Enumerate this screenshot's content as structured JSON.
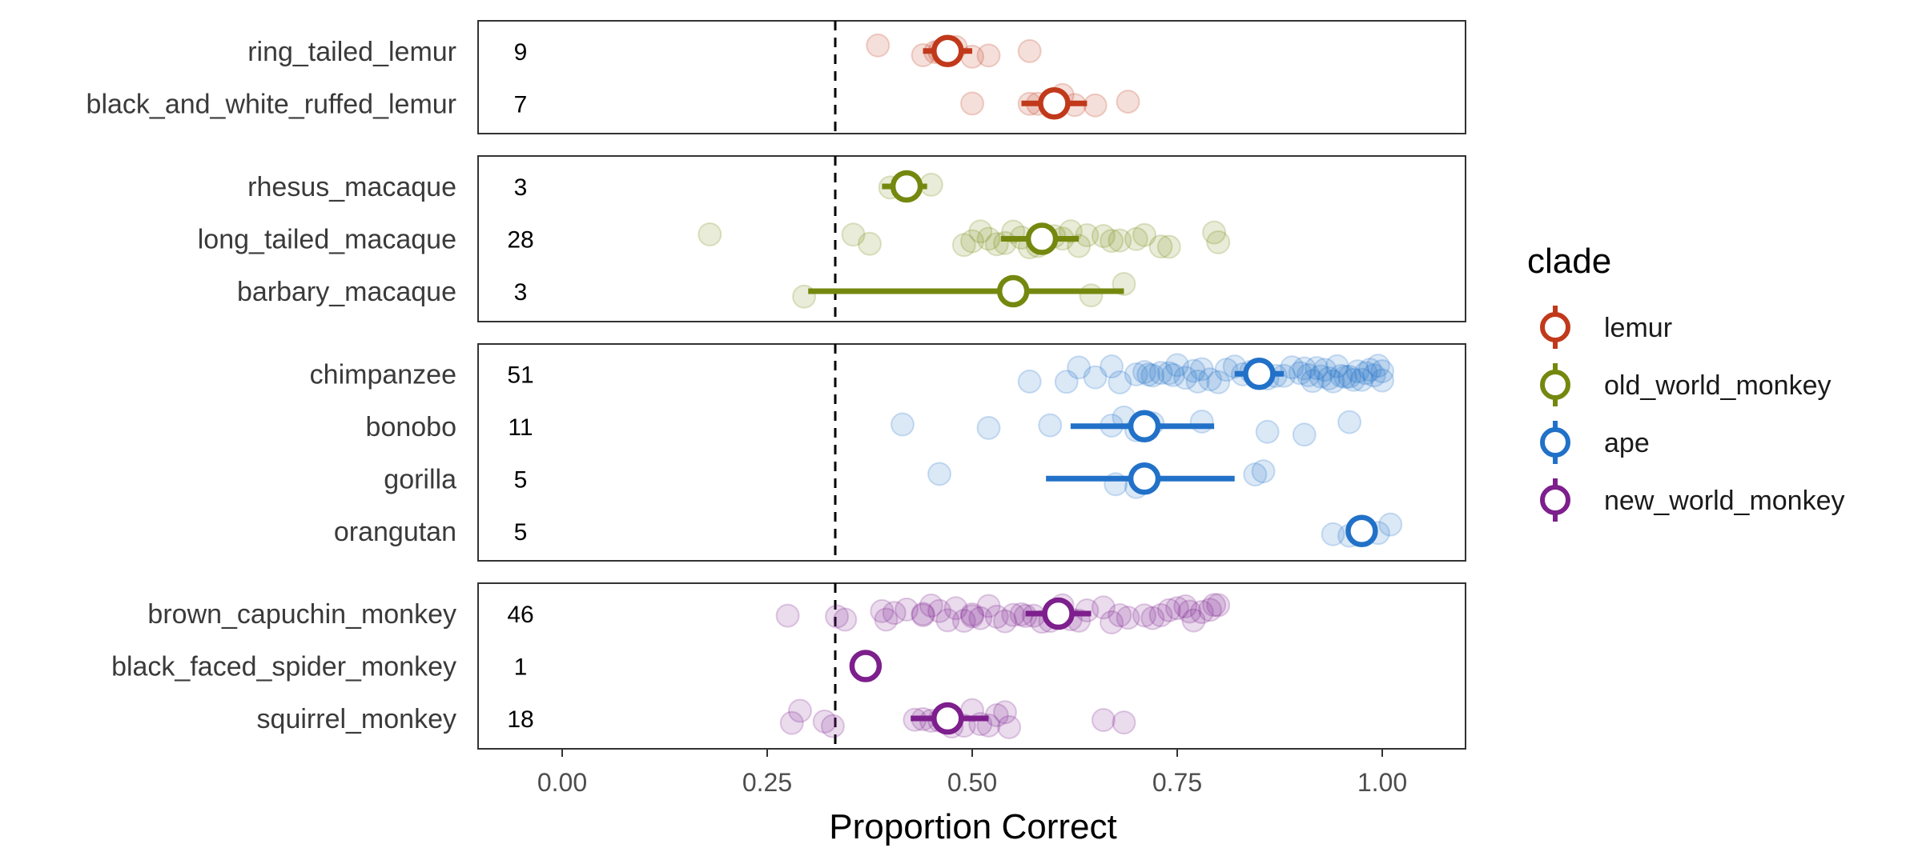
{
  "chart_data": {
    "type": "scatter",
    "title": "",
    "xlabel": "Proportion Correct",
    "ylabel": "",
    "xlim": [
      -0.1,
      1.1
    ],
    "x_ticks": [
      0,
      0.25,
      0.5,
      0.75,
      1
    ],
    "x_tick_labels": [
      "0.00",
      "0.25",
      "0.50",
      "0.75",
      "1.00"
    ],
    "chance_line": 0.333,
    "grid": false,
    "legend": {
      "title": "clade",
      "position": "right",
      "entries": [
        {
          "key": "lemur",
          "label": "lemur",
          "color": "#C1391B"
        },
        {
          "key": "old_world_monkey",
          "label": "old_world_monkey",
          "color": "#74880F"
        },
        {
          "key": "ape",
          "label": "ape",
          "color": "#2271C8"
        },
        {
          "key": "new_world_monkey",
          "label": "new_world_monkey",
          "color": "#7D1F8C"
        }
      ]
    },
    "panels": [
      {
        "clade": "lemur",
        "species": [
          {
            "name": "ring_tailed_lemur",
            "n": "9",
            "mean": 0.47,
            "ci": [
              0.44,
              0.5
            ],
            "points": [
              0.385,
              0.44,
              0.455,
              0.47,
              0.48,
              0.5,
              0.52,
              0.57,
              0.46
            ]
          },
          {
            "name": "black_and_white_ruffed_lemur",
            "n": "7",
            "mean": 0.6,
            "ci": [
              0.56,
              0.64
            ],
            "points": [
              0.5,
              0.57,
              0.58,
              0.61,
              0.625,
              0.65,
              0.69
            ]
          }
        ]
      },
      {
        "clade": "old_world_monkey",
        "species": [
          {
            "name": "rhesus_macaque",
            "n": "3",
            "mean": 0.42,
            "ci": [
              0.39,
              0.445
            ],
            "points": [
              0.4,
              0.42,
              0.45
            ]
          },
          {
            "name": "long_tailed_macaque",
            "n": "28",
            "mean": 0.585,
            "ci": [
              0.535,
              0.63
            ],
            "points": [
              0.18,
              0.355,
              0.375,
              0.49,
              0.5,
              0.51,
              0.52,
              0.53,
              0.54,
              0.55,
              0.56,
              0.57,
              0.58,
              0.59,
              0.6,
              0.61,
              0.62,
              0.63,
              0.64,
              0.66,
              0.67,
              0.68,
              0.7,
              0.71,
              0.73,
              0.74,
              0.795,
              0.8
            ]
          },
          {
            "name": "barbary_macaque",
            "n": "3",
            "mean": 0.55,
            "ci": [
              0.3,
              0.685
            ],
            "points": [
              0.295,
              0.645,
              0.685
            ]
          }
        ]
      },
      {
        "clade": "ape",
        "species": [
          {
            "name": "chimpanzee",
            "n": "51",
            "mean": 0.85,
            "ci": [
              0.82,
              0.88
            ],
            "points": [
              0.57,
              0.615,
              0.63,
              0.65,
              0.67,
              0.68,
              0.7,
              0.71,
              0.72,
              0.73,
              0.74,
              0.75,
              0.76,
              0.77,
              0.78,
              0.79,
              0.8,
              0.81,
              0.82,
              0.83,
              0.84,
              0.85,
              0.86,
              0.87,
              0.88,
              0.89,
              0.9,
              0.91,
              0.92,
              0.93,
              0.94,
              0.95,
              0.96,
              0.965,
              0.97,
              0.975,
              0.98,
              0.985,
              0.99,
              0.995,
              1.0,
              1.0,
              0.905,
              0.915,
              0.925,
              0.935,
              0.945,
              0.955,
              0.775,
              0.745,
              0.715
            ]
          },
          {
            "name": "bonobo",
            "n": "11",
            "mean": 0.71,
            "ci": [
              0.62,
              0.795
            ],
            "points": [
              0.415,
              0.52,
              0.595,
              0.67,
              0.685,
              0.7,
              0.72,
              0.78,
              0.86,
              0.905,
              0.96
            ]
          },
          {
            "name": "gorilla",
            "n": "5",
            "mean": 0.71,
            "ci": [
              0.59,
              0.82
            ],
            "points": [
              0.46,
              0.675,
              0.7,
              0.845,
              0.855
            ]
          },
          {
            "name": "orangutan",
            "n": "5",
            "mean": 0.975,
            "ci": [
              0.965,
              0.985
            ],
            "points": [
              0.94,
              0.96,
              0.975,
              0.995,
              1.01
            ]
          }
        ]
      },
      {
        "clade": "new_world_monkey",
        "species": [
          {
            "name": "brown_capuchin_monkey",
            "n": "46",
            "mean": 0.605,
            "ci": [
              0.565,
              0.645
            ],
            "points": [
              0.275,
              0.335,
              0.345,
              0.39,
              0.395,
              0.405,
              0.42,
              0.44,
              0.45,
              0.46,
              0.47,
              0.48,
              0.49,
              0.5,
              0.51,
              0.52,
              0.53,
              0.54,
              0.55,
              0.56,
              0.565,
              0.575,
              0.585,
              0.595,
              0.61,
              0.62,
              0.63,
              0.64,
              0.66,
              0.67,
              0.68,
              0.69,
              0.71,
              0.72,
              0.73,
              0.74,
              0.75,
              0.76,
              0.765,
              0.77,
              0.78,
              0.79,
              0.795,
              0.8,
              0.5,
              0.44
            ]
          },
          {
            "name": "black_faced_spider_monkey",
            "n": "1",
            "mean": 0.37,
            "ci": [
              0.37,
              0.37
            ],
            "points": [
              0.37
            ]
          },
          {
            "name": "squirrel_monkey",
            "n": "18",
            "mean": 0.47,
            "ci": [
              0.425,
              0.52
            ],
            "points": [
              0.28,
              0.29,
              0.32,
              0.33,
              0.43,
              0.44,
              0.45,
              0.46,
              0.475,
              0.49,
              0.5,
              0.51,
              0.52,
              0.53,
              0.54,
              0.545,
              0.66,
              0.685
            ]
          }
        ]
      }
    ]
  }
}
